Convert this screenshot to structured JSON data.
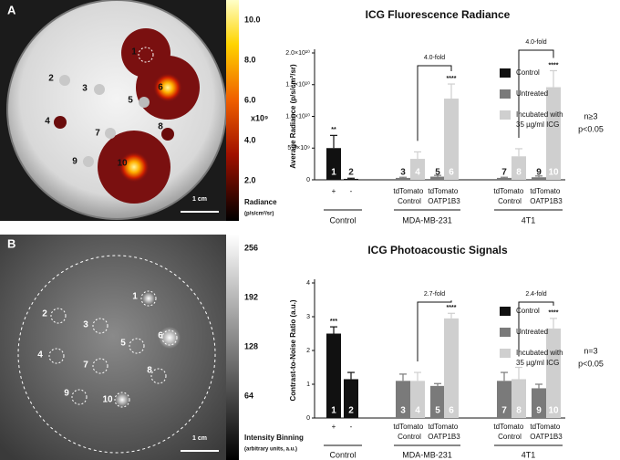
{
  "panels": [
    {
      "letter": "A",
      "wells": [
        "1",
        "2",
        "3",
        "4",
        "5",
        "6",
        "7",
        "8",
        "9",
        "10"
      ],
      "scale_bar": "1 cm",
      "colorbar": {
        "lim": [
          0,
          10
        ],
        "ticks": [
          {
            "value": 10,
            "label": "10.0"
          },
          {
            "value": 8,
            "label": "8.0"
          },
          {
            "value": 6,
            "label": "6.0"
          },
          {
            "value": 4,
            "label": "4.0"
          },
          {
            "value": 2,
            "label": "2.0"
          }
        ],
        "multiplier": "x10⁹",
        "label": "Radiance",
        "unit": "(p/s/cm²/sr)"
      }
    },
    {
      "letter": "B",
      "wells": [
        "1",
        "2",
        "3",
        "4",
        "5",
        "6",
        "7",
        "8",
        "9",
        "10"
      ],
      "scale_bar": "1 cm",
      "colorbar": {
        "lim": [
          0,
          256
        ],
        "ticks": [
          256,
          192,
          128,
          64
        ],
        "label": "Intensity Binning",
        "unit": "(arbitrary units, a.u.)"
      }
    }
  ],
  "chart_data": [
    {
      "type": "bar",
      "title": "ICG Fluorescence Radiance",
      "y_label": "Average Radiance (p/s/cm²/sr)",
      "categories": [
        "1",
        "2",
        "3",
        "4",
        "5",
        "6",
        "7",
        "8",
        "9",
        "10"
      ],
      "series": [
        {
          "name": "Control",
          "color": "#111111",
          "values": [
            5000000000,
            150000000,
            null,
            null,
            null,
            null,
            null,
            null,
            null,
            null
          ],
          "errors": [
            2000000000,
            100000000,
            null,
            null,
            null,
            null,
            null,
            null,
            null,
            null
          ]
        },
        {
          "name": "Untreated",
          "color": "#7a7a7a",
          "values": [
            null,
            null,
            300000000,
            null,
            500000000,
            null,
            300000000,
            null,
            400000000,
            null
          ],
          "errors": [
            null,
            null,
            100000000,
            null,
            200000000,
            null,
            100000000,
            null,
            200000000,
            null
          ]
        },
        {
          "name": "Incubated with 35 µg/ml ICG",
          "color": "#cfcfcf",
          "values": [
            null,
            null,
            null,
            3300000000,
            null,
            12800000000,
            null,
            3700000000,
            null,
            14600000000
          ],
          "errors": [
            null,
            null,
            null,
            1100000000,
            null,
            2300000000,
            null,
            1200000000,
            null,
            2600000000
          ]
        }
      ],
      "significance": [
        "**",
        null,
        null,
        null,
        null,
        "****",
        null,
        null,
        null,
        "****"
      ],
      "fold_changes": [
        "4.0-fold",
        "4.0-fold"
      ],
      "treatment_labels": [
        "+",
        "-",
        "tdTomato Control",
        "tdTomato OATP1B3",
        "tdTomato Control",
        "tdTomato OATP1B3"
      ],
      "groups": [
        "Control",
        "MDA-MB-231",
        "4T1"
      ],
      "stats": [
        "n≥3",
        "p<0.05"
      ],
      "ylim": [
        0,
        20000000000
      ],
      "yticks": [
        0,
        {
          "value": 5000000000,
          "label": "5.0×10⁹"
        },
        {
          "value": 10000000000,
          "label": "1.0×10¹⁰"
        },
        {
          "value": 15000000000,
          "label": "1.5×10¹⁰"
        },
        {
          "value": 20000000000,
          "label": "2.0×10¹⁰"
        }
      ],
      "legend": "right"
    },
    {
      "type": "bar",
      "title": "ICG Photoacoustic Signals",
      "y_label": "Contrast-to-Noise Ratio (a.u.)",
      "categories": [
        "1",
        "2",
        "3",
        "4",
        "5",
        "6",
        "7",
        "8",
        "9",
        "10"
      ],
      "series": [
        {
          "name": "Control",
          "color": "#111111",
          "values": [
            2.5,
            1.15,
            null,
            null,
            null,
            null,
            null,
            null,
            null,
            null
          ],
          "errors": [
            0.2,
            0.2,
            null,
            null,
            null,
            null,
            null,
            null,
            null,
            null
          ]
        },
        {
          "name": "Untreated",
          "color": "#7a7a7a",
          "values": [
            null,
            null,
            1.1,
            null,
            0.95,
            null,
            1.1,
            null,
            0.88,
            null
          ],
          "errors": [
            null,
            null,
            0.2,
            null,
            0.07,
            null,
            0.25,
            null,
            0.12,
            null
          ]
        },
        {
          "name": "Incubated with 35 µg/ml ICG",
          "color": "#cfcfcf",
          "values": [
            null,
            null,
            null,
            1.1,
            null,
            2.95,
            null,
            1.15,
            null,
            2.65
          ],
          "errors": [
            null,
            null,
            null,
            0.25,
            null,
            0.15,
            null,
            0.35,
            null,
            0.3
          ]
        }
      ],
      "significance": [
        "***",
        null,
        null,
        null,
        null,
        "****",
        null,
        null,
        null,
        "****"
      ],
      "fold_changes": [
        "2.7-fold",
        "2.4-fold"
      ],
      "treatment_labels": [
        "+",
        "-",
        "tdTomato Control",
        "tdTomato OATP1B3",
        "tdTomato Control",
        "tdTomato OATP1B3"
      ],
      "groups": [
        "Control",
        "MDA-MB-231",
        "4T1"
      ],
      "stats": [
        "n=3",
        "p<0.05"
      ],
      "ylim": [
        0,
        4
      ],
      "yticks": [
        0,
        1,
        2,
        3,
        4
      ],
      "legend": "right"
    }
  ]
}
